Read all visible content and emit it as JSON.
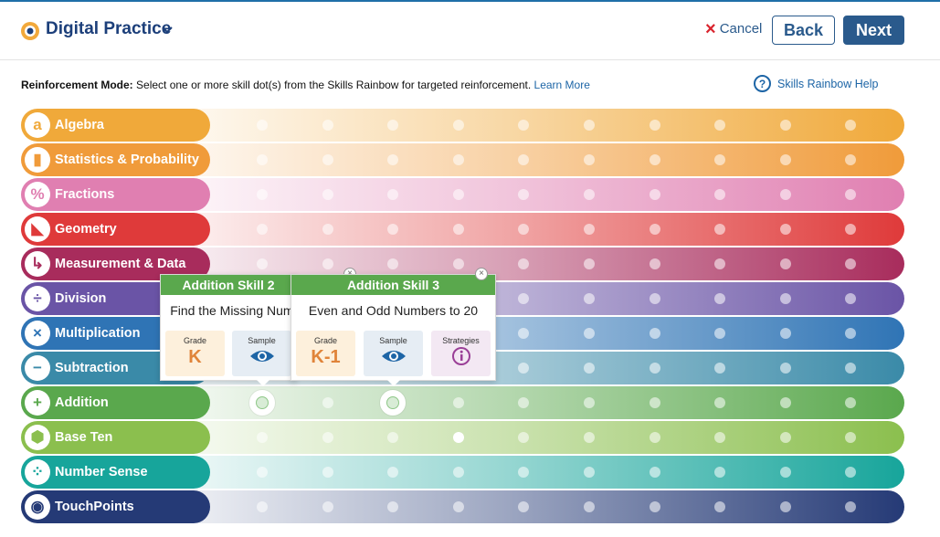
{
  "header": {
    "app_title": "Digital Practice",
    "cancel_label": "Cancel",
    "back_label": "Back",
    "next_label": "Next",
    "brand_color": "#1c3f7a"
  },
  "info": {
    "mode_label": "Reinforcement Mode:",
    "mode_text": " Select one or more skill dot(s) from the Skills Rainbow for targeted reinforcement. ",
    "learn_more": "Learn More",
    "help_label": "Skills Rainbow Help"
  },
  "strands": [
    {
      "label": "Algebra",
      "icon": "algebra-icon",
      "glyph": "a",
      "color": "#f0a93a",
      "dots": 10
    },
    {
      "label": "Statistics & Probability",
      "icon": "bar-chart-icon",
      "glyph": "▮",
      "color": "#f09b3a",
      "dots": 10
    },
    {
      "label": "Fractions",
      "icon": "percent-icon",
      "glyph": "%",
      "color": "#e07fb1",
      "dots": 10
    },
    {
      "label": "Geometry",
      "icon": "triangle-ruler-icon",
      "glyph": "◣",
      "color": "#df3a3a",
      "dots": 10
    },
    {
      "label": "Measurement & Data",
      "icon": "measure-arrow-icon",
      "glyph": "↳",
      "color": "#a82c5c",
      "dots": 10
    },
    {
      "label": "Division",
      "icon": "division-icon",
      "glyph": "÷",
      "color": "#6a54a6",
      "dots": 10
    },
    {
      "label": "Multiplication",
      "icon": "multiply-icon",
      "glyph": "×",
      "color": "#2f74b5",
      "dots": 10
    },
    {
      "label": "Subtraction",
      "icon": "minus-icon",
      "glyph": "−",
      "color": "#3a8aa8",
      "dots": 10
    },
    {
      "label": "Addition",
      "icon": "plus-icon",
      "glyph": "+",
      "color": "#5aa84d",
      "dots": 10
    },
    {
      "label": "Base Ten",
      "icon": "cube-icon",
      "glyph": "⬢",
      "color": "#8bbf4e",
      "dots": 10
    },
    {
      "label": "Number Sense",
      "icon": "dots-icon",
      "glyph": "⁘",
      "color": "#17a59b",
      "dots": 10
    },
    {
      "label": "TouchPoints",
      "icon": "touchpoint-icon",
      "glyph": "◉",
      "color": "#253a76",
      "dots": 10
    }
  ],
  "popovers": [
    {
      "title": "Addition Skill 2",
      "desc": "Find the Missing Number",
      "grade_caption": "Grade",
      "grade": "K",
      "sample_caption": "Sample"
    },
    {
      "title": "Addition Skill 3",
      "desc": "Even and Odd Numbers to 20",
      "grade_caption": "Grade",
      "grade": "K-1",
      "sample_caption": "Sample",
      "strategies_caption": "Strategies"
    }
  ]
}
